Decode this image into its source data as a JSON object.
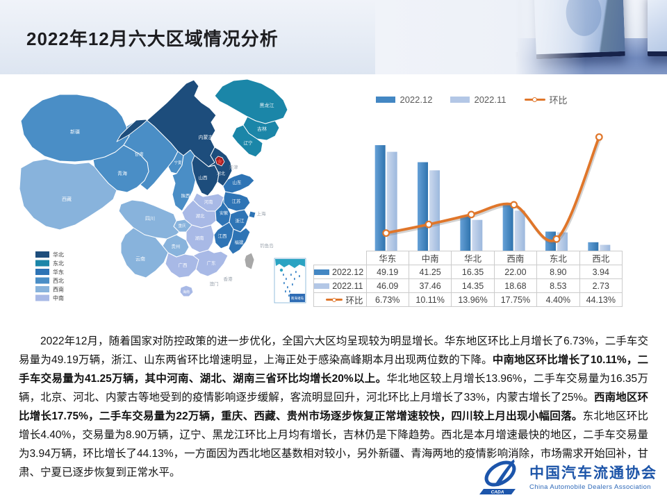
{
  "slide": {
    "title": "2022年12月六大区域情况分析"
  },
  "chart_data": {
    "type": "bar",
    "subtype": "bar+line combo, smooth line on secondary axis, data table below as x axis",
    "categories": [
      "华东",
      "中南",
      "华北",
      "西南",
      "东北",
      "西北"
    ],
    "series": [
      {
        "name": "2022.12",
        "type": "bar",
        "color": "#4387c3",
        "values": [
          49.19,
          41.25,
          16.35,
          22.0,
          8.9,
          3.94
        ]
      },
      {
        "name": "2022.11",
        "type": "bar",
        "color": "#b3c7e6",
        "values": [
          46.09,
          37.46,
          14.35,
          18.68,
          8.53,
          2.73
        ]
      },
      {
        "name": "环比",
        "type": "line",
        "color": "#e0762a",
        "axis": "secondary",
        "values": [
          6.73,
          10.11,
          13.96,
          17.75,
          4.4,
          44.13
        ],
        "labels": [
          "6.73%",
          "10.11%",
          "13.96%",
          "17.75%",
          "4.40%",
          "44.13%"
        ]
      }
    ],
    "title": "",
    "xlabel": "",
    "ylabel": "",
    "primary_max": 67,
    "secondary_max": 56,
    "grid": false,
    "axes_hidden": true,
    "legend_position": "top",
    "data_table": true
  },
  "table": {
    "row_labels": [
      "2022.12",
      "2022.11",
      "环比"
    ],
    "rows": [
      [
        "49.19",
        "41.25",
        "16.35",
        "22.00",
        "8.90",
        "3.94"
      ],
      [
        "46.09",
        "37.46",
        "14.35",
        "18.68",
        "8.53",
        "2.73"
      ],
      [
        "6.73%",
        "10.11%",
        "13.96%",
        "17.75%",
        "4.40%",
        "44.13%"
      ]
    ]
  },
  "map": {
    "regions": [
      {
        "name": "华北",
        "color": "#1d4d7c"
      },
      {
        "name": "东北",
        "color": "#1b86a8"
      },
      {
        "name": "华东",
        "color": "#2e74b5"
      },
      {
        "name": "西北",
        "color": "#4a8ec6"
      },
      {
        "name": "西南",
        "color": "#88b3dc"
      },
      {
        "name": "中南",
        "color": "#a8b9e6"
      }
    ],
    "provinces": [
      {
        "name": "新疆",
        "region": "西北"
      },
      {
        "name": "甘肃",
        "region": "西北"
      },
      {
        "name": "青海",
        "region": "西北"
      },
      {
        "name": "宁夏",
        "region": "西北"
      },
      {
        "name": "陕西",
        "region": "西北"
      },
      {
        "name": "西藏",
        "region": "西南"
      },
      {
        "name": "四川",
        "region": "西南"
      },
      {
        "name": "重庆",
        "region": "西南"
      },
      {
        "name": "贵州",
        "region": "西南"
      },
      {
        "name": "云南",
        "region": "西南"
      },
      {
        "name": "河南",
        "region": "中南"
      },
      {
        "name": "湖北",
        "region": "中南"
      },
      {
        "name": "湖南",
        "region": "中南"
      },
      {
        "name": "广西",
        "region": "中南"
      },
      {
        "name": "广东",
        "region": "中南"
      },
      {
        "name": "海南",
        "region": "中南"
      },
      {
        "name": "山东",
        "region": "华东"
      },
      {
        "name": "江苏",
        "region": "华东"
      },
      {
        "name": "安徽",
        "region": "华东"
      },
      {
        "name": "上海",
        "region": "华东"
      },
      {
        "name": "浙江",
        "region": "华东"
      },
      {
        "name": "江西",
        "region": "华东"
      },
      {
        "name": "福建",
        "region": "华东"
      },
      {
        "name": "内蒙古",
        "region": "华北"
      },
      {
        "name": "山西",
        "region": "华北"
      },
      {
        "name": "河北",
        "region": "华北"
      },
      {
        "name": "黑龙江",
        "region": "东北"
      },
      {
        "name": "吉林",
        "region": "东北"
      },
      {
        "name": "辽宁",
        "region": "东北"
      }
    ],
    "gray_labels": [
      "上海",
      "天津",
      "香港",
      "澳门",
      "钓鱼岛"
    ],
    "inset_label": "南海诸岛"
  },
  "paragraph": {
    "segments": [
      {
        "bold": false,
        "text": "2022年12月，随着国家对防控政策的进一步优化，全国六大区均呈现较为明显增长。华东地区环比上月增长了6.73%，二手车交易量为49.19万辆，浙江、山东两省环比增速明显，上海正处于感染高峰期本月出现两位数的下降。"
      },
      {
        "bold": true,
        "text": "中南地区环比增长了10.11%，二手车交易量为41.25万辆，其中河南、湖北、湖南三省环比均增长20%以上。"
      },
      {
        "bold": false,
        "text": "华北地区较上月增长13.96%，二手车交易量为16.35万辆，北京、河北、内蒙古等地受到的疫情影响逐步缓解，客流明显回升，河北环比上月增长了33%，内蒙古增长了25%。"
      },
      {
        "bold": true,
        "text": "西南地区环比增长17.75%，二手车交易量为22万辆，重庆、西藏、贵州市场逐步恢复正常增速较快，四川较上月出现小幅回落。"
      },
      {
        "bold": false,
        "text": "东北地区环比增长4.40%，交易量为8.90万辆，辽宁、黑龙江环比上月均有增长，吉林仍是下降趋势。西北是本月增速最快的地区，二手车交易量为3.94万辆，环比增长了44.13%，一方面因为西北地区基数相对较小，另外新疆、青海两地的疫情影响消除，市场需求开始回补，甘肃、宁夏已逐步恢复到正常水平。"
      }
    ]
  },
  "logo": {
    "cn": "中国汽车流通协会",
    "en": "China Automobile Dealers Association",
    "badge": "CADA"
  }
}
